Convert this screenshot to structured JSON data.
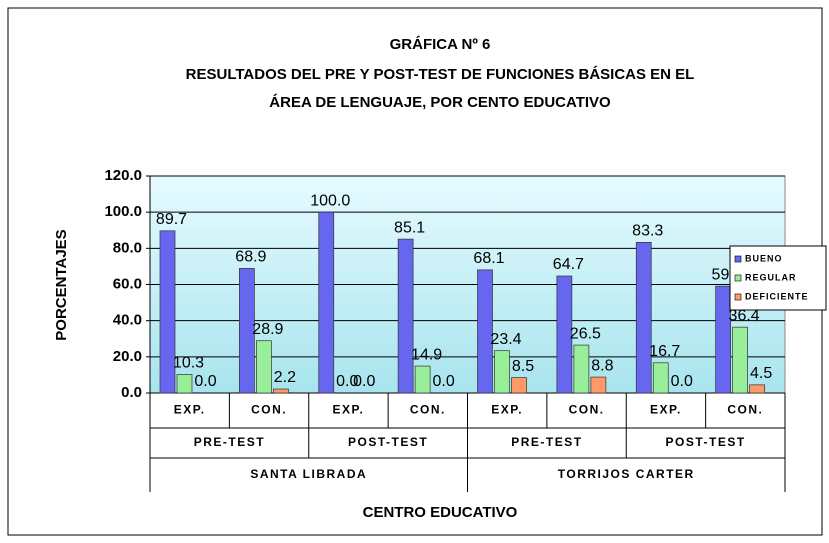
{
  "chart_data": {
    "type": "bar",
    "title": [
      "GRÁFICA Nº 6",
      "RESULTADOS DEL PRE Y POST-TEST DE FUNCIONES BÁSICAS EN EL",
      "ÁREA DE LENGUAJE, POR CENTO EDUCATIVO"
    ],
    "ylabel": "PORCENTAJES",
    "xlabel": "CENTRO EDUCATIVO",
    "categories": [
      "EXP.",
      "CON.",
      "EXP.",
      "CON.",
      "EXP.",
      "CON.",
      "EXP.",
      "CON."
    ],
    "category_groups": [
      "PRE-TEST",
      "POST-TEST",
      "PRE-TEST",
      "POST-TEST"
    ],
    "category_supergroups": [
      "SANTA LIBRADA",
      "TORRIJOS CARTER"
    ],
    "series": [
      {
        "name": "BUENO",
        "color": "#6666ee",
        "values": [
          89.7,
          68.9,
          100,
          85.1,
          68.1,
          64.7,
          83.3,
          59.1
        ],
        "value_labels": [
          "89.7",
          "68.9",
          "100.0",
          "85.1",
          "68.1",
          "64.7",
          "83.3",
          "59.1"
        ]
      },
      {
        "name": "REGULAR",
        "color": "#99ee99",
        "values": [
          10.3,
          28.9,
          0,
          14.9,
          23.4,
          26.5,
          16.7,
          36.4
        ],
        "value_labels": [
          "10.3",
          "28.9",
          "0.0",
          "14.9",
          "23.4",
          "26.5",
          "16.7",
          "36.4"
        ]
      },
      {
        "name": "DEFICIENTE",
        "color": "#ff9966",
        "values": [
          0,
          2.2,
          0,
          0,
          8.5,
          8.8,
          0,
          4.5
        ],
        "value_labels": [
          "0.0",
          "2.2",
          "0.0",
          "0.0",
          "8.5",
          "8.8",
          "0.0",
          "4.5"
        ]
      }
    ],
    "ylim": [
      0,
      120
    ],
    "yticks": [
      {
        "value": 0,
        "label": "0.0"
      },
      {
        "value": 20,
        "label": "20.0"
      },
      {
        "value": 40,
        "label": "40.0"
      },
      {
        "value": 60,
        "label": "60.0"
      },
      {
        "value": 80,
        "label": "80.0"
      },
      {
        "value": 100,
        "label": "100.0"
      },
      {
        "value": 120,
        "label": "120.0"
      }
    ],
    "grid": true,
    "legend": "right"
  }
}
